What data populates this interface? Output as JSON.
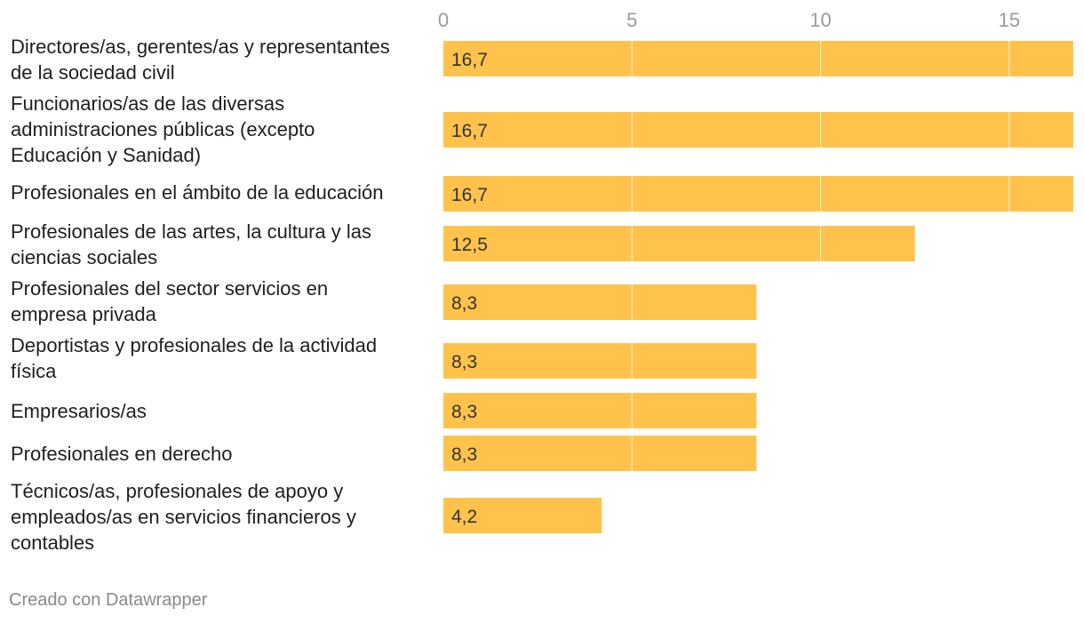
{
  "chart_data": {
    "type": "bar",
    "orientation": "horizontal",
    "categories": [
      "Directores/as, gerentes/as y representantes\nde la sociedad civil",
      "Funcionarios/as de las diversas\nadministraciones públicas (excepto\nEducación y Sanidad)",
      "Profesionales en el ámbito de la educación",
      "Profesionales de las artes, la cultura y las\nciencias sociales",
      "Profesionales del sector servicios en\nempresa privada",
      "Deportistas y profesionales de la actividad\nfísica",
      "Empresarios/as",
      "Profesionales en derecho",
      "Técnicos/as, profesionales de apoyo y\nempleados/as en servicios financieros y\ncontables"
    ],
    "values": [
      16.7,
      16.7,
      16.7,
      12.5,
      8.3,
      8.3,
      8.3,
      8.3,
      4.2
    ],
    "value_labels": [
      "16,7",
      "16,7",
      "16,7",
      "12,5",
      "8,3",
      "8,3",
      "8,3",
      "8,3",
      "4,2"
    ],
    "xticks": [
      0,
      5,
      10,
      15
    ],
    "xtick_labels": [
      "0",
      "5",
      "10",
      "15"
    ],
    "xlim": [
      0,
      16.7
    ],
    "bar_color": "#ffc34c",
    "grid": true
  },
  "footer": {
    "credit": "Creado con Datawrapper"
  }
}
